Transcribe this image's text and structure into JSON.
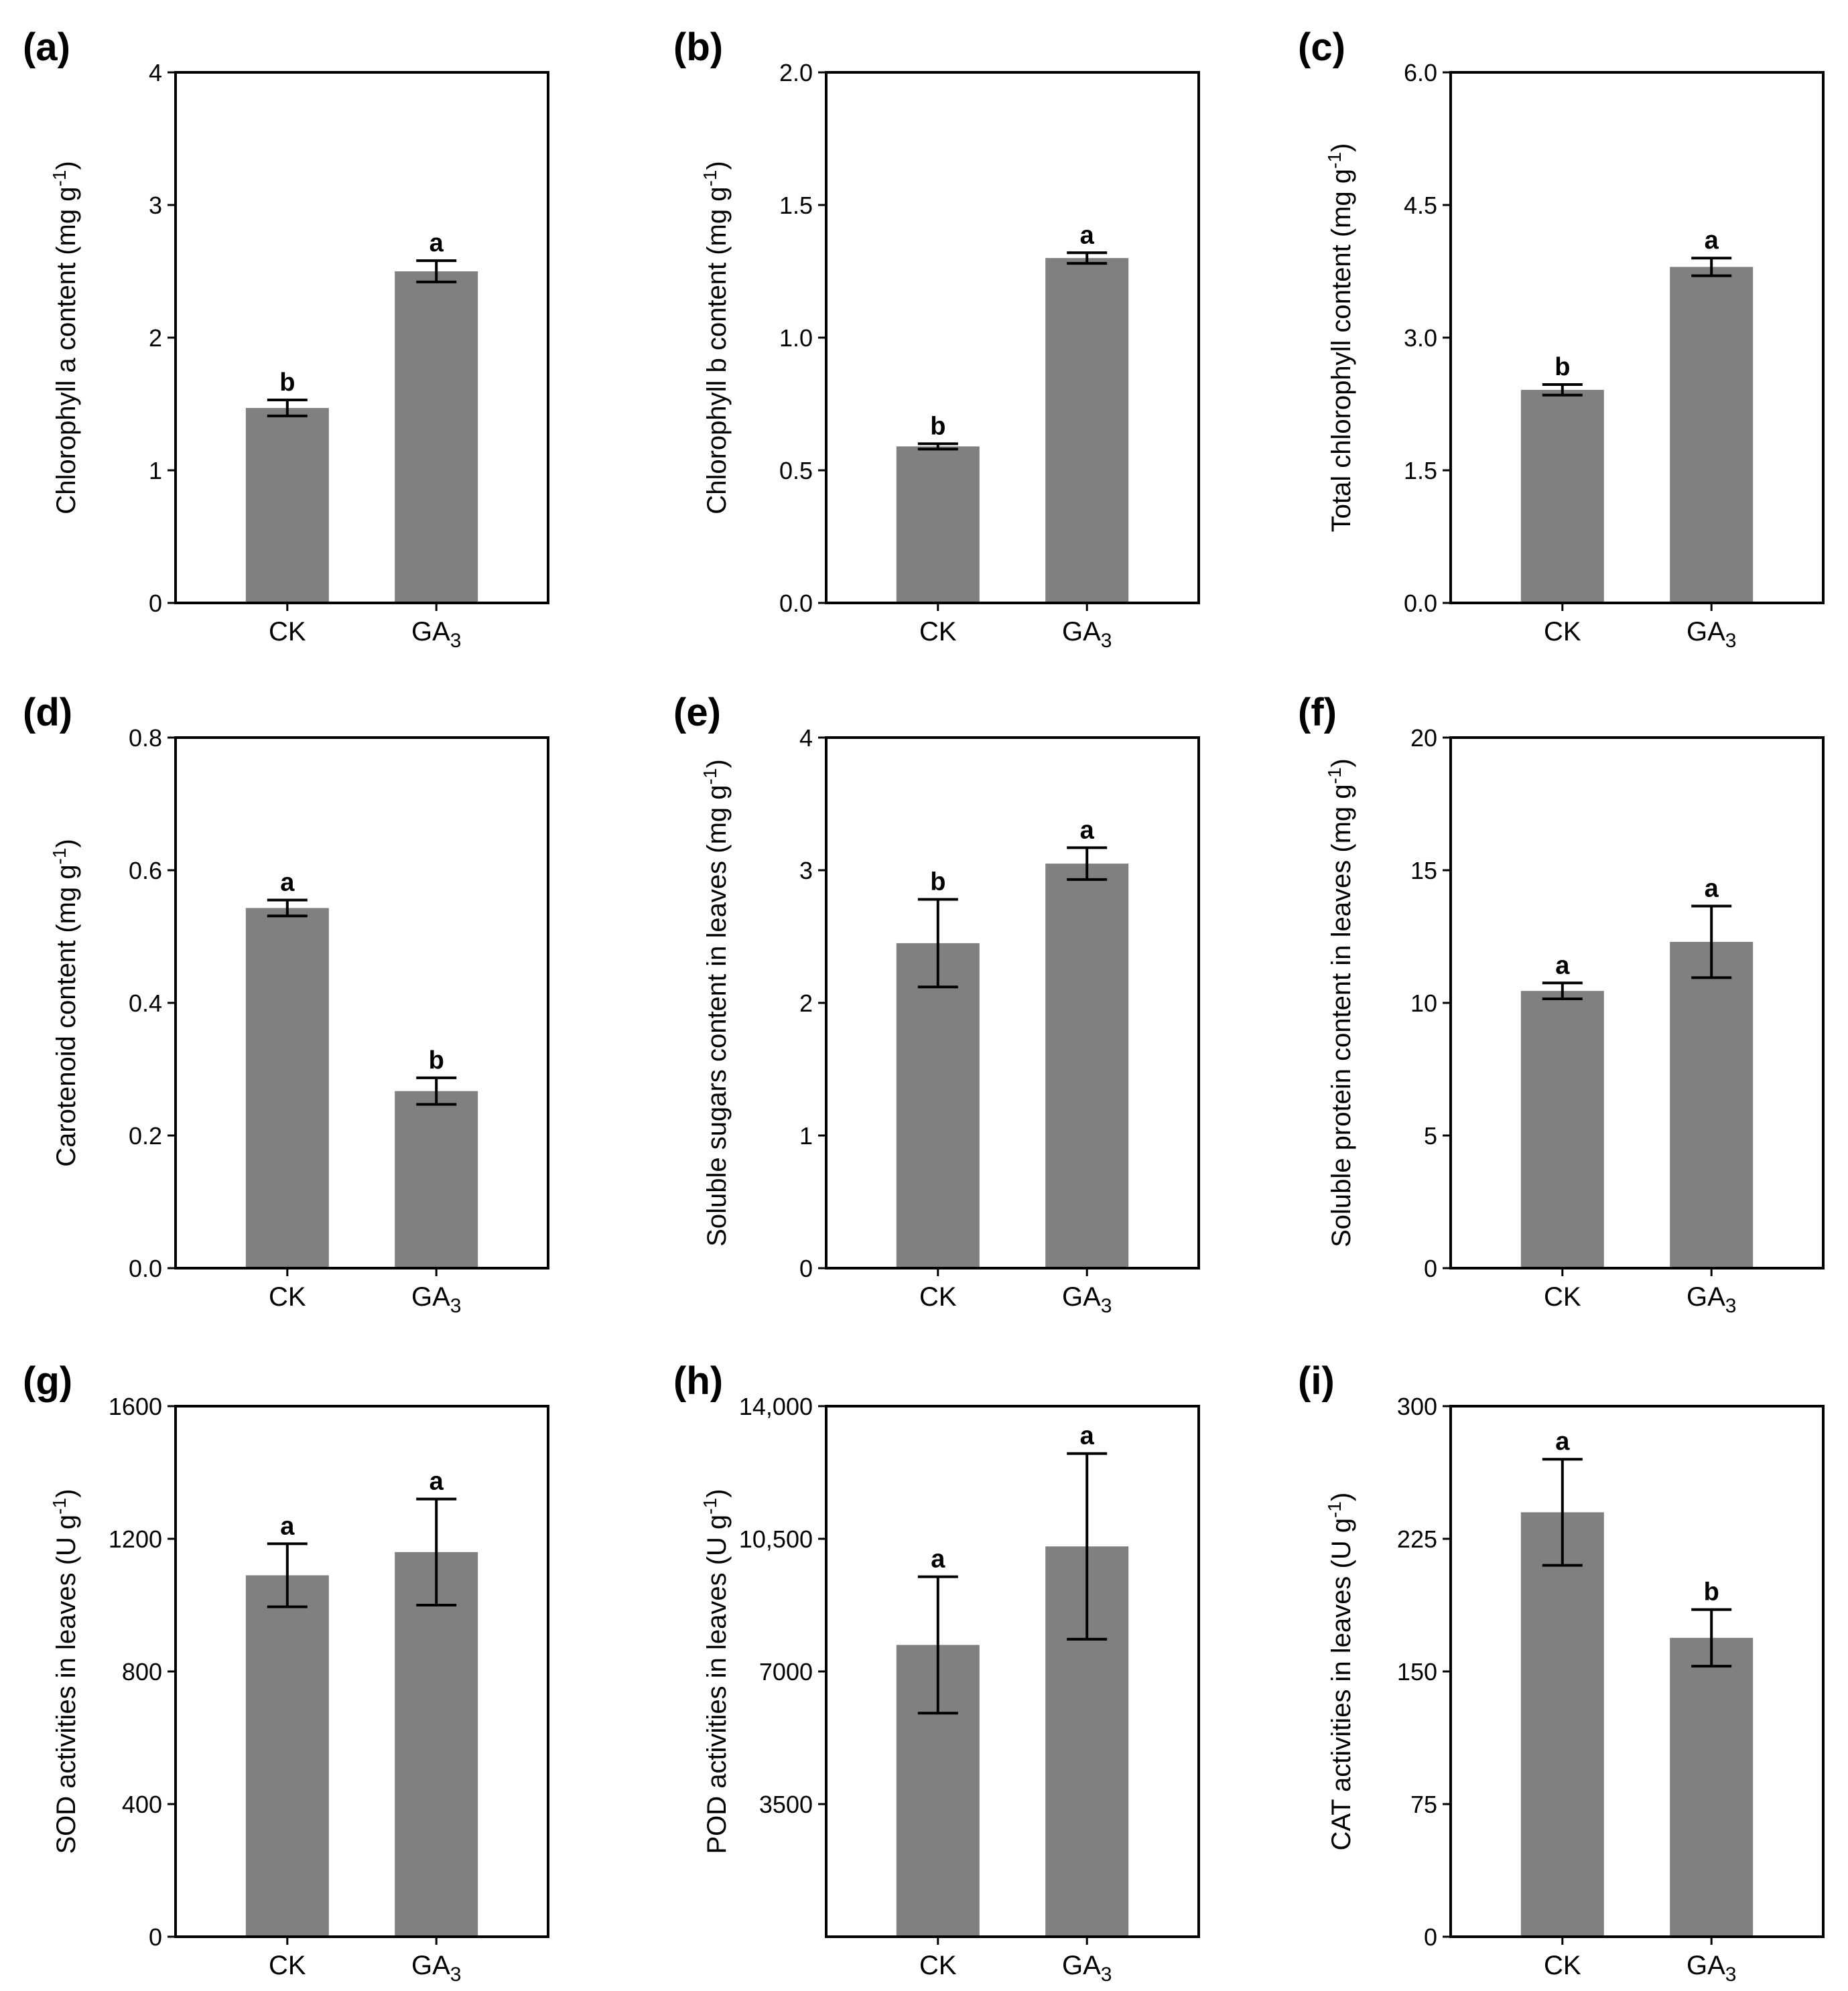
{
  "chart_data": [
    {
      "panel": "(a)",
      "type": "bar",
      "categories": [
        "CK",
        "GA3"
      ],
      "values": [
        1.47,
        2.5
      ],
      "errors": [
        0.06,
        0.08
      ],
      "significance": [
        "b",
        "a"
      ],
      "ylabel": "Chlorophyll a content (mg g-1)",
      "ylim": [
        0,
        4
      ],
      "yticks": [
        0,
        1,
        2,
        3,
        4
      ],
      "ytick_labels": [
        "0",
        "1",
        "2",
        "3",
        "4"
      ],
      "bar_color": "#808080"
    },
    {
      "panel": "(b)",
      "type": "bar",
      "categories": [
        "CK",
        "GA3"
      ],
      "values": [
        0.59,
        1.3
      ],
      "errors": [
        0.01,
        0.02
      ],
      "significance": [
        "b",
        "a"
      ],
      "ylabel": "Chlorophyll b content (mg g-1)",
      "ylim": [
        0,
        2
      ],
      "yticks": [
        0,
        0.5,
        1,
        1.5,
        2
      ],
      "ytick_labels": [
        "0.0",
        "0.5",
        "1.0",
        "1.5",
        "2.0"
      ],
      "bar_color": "#808080"
    },
    {
      "panel": "(c)",
      "type": "bar",
      "categories": [
        "CK",
        "GA3"
      ],
      "values": [
        2.41,
        3.8
      ],
      "errors": [
        0.06,
        0.1
      ],
      "significance": [
        "b",
        "a"
      ],
      "ylabel": "Total chlorophyll content (mg g-1)",
      "ylim": [
        0,
        6
      ],
      "yticks": [
        0,
        1.5,
        3,
        4.5,
        6
      ],
      "ytick_labels": [
        "0.0",
        "1.5",
        "3.0",
        "4.5",
        "6.0"
      ],
      "bar_color": "#808080"
    },
    {
      "panel": "(d)",
      "type": "bar",
      "categories": [
        "CK",
        "GA3"
      ],
      "values": [
        0.543,
        0.267
      ],
      "errors": [
        0.012,
        0.02
      ],
      "significance": [
        "a",
        "b"
      ],
      "ylabel": "Carotenoid content (mg g-1)",
      "ylim": [
        0,
        0.8
      ],
      "yticks": [
        0,
        0.2,
        0.4,
        0.6,
        0.8
      ],
      "ytick_labels": [
        "0.0",
        "0.2",
        "0.4",
        "0.6",
        "0.8"
      ],
      "bar_color": "#808080"
    },
    {
      "panel": "(e)",
      "type": "bar",
      "categories": [
        "CK",
        "GA3"
      ],
      "values": [
        2.45,
        3.05
      ],
      "errors": [
        0.33,
        0.12
      ],
      "significance": [
        "b",
        "a"
      ],
      "ylabel": "Soluble sugars content in leaves (mg g-1)",
      "ylim": [
        0,
        4
      ],
      "yticks": [
        0,
        1,
        2,
        3,
        4
      ],
      "ytick_labels": [
        "0",
        "1",
        "2",
        "3",
        "4"
      ],
      "bar_color": "#808080"
    },
    {
      "panel": "(f)",
      "type": "bar",
      "categories": [
        "CK",
        "GA3"
      ],
      "values": [
        10.45,
        12.3
      ],
      "errors": [
        0.3,
        1.35
      ],
      "significance": [
        "a",
        "a"
      ],
      "ylabel": "Soluble protein content in leaves (mg g-1)",
      "ylim": [
        0,
        20
      ],
      "yticks": [
        0,
        5,
        10,
        15,
        20
      ],
      "ytick_labels": [
        "0",
        "5",
        "10",
        "15",
        "20"
      ],
      "bar_color": "#808080"
    },
    {
      "panel": "(g)",
      "type": "bar",
      "categories": [
        "CK",
        "GA3"
      ],
      "values": [
        1090,
        1160
      ],
      "errors": [
        95,
        160
      ],
      "significance": [
        "a",
        "a"
      ],
      "ylabel": "SOD activities in leaves (U g-1)",
      "ylim": [
        0,
        1600
      ],
      "yticks": [
        0,
        400,
        800,
        1200,
        1600
      ],
      "ytick_labels": [
        "0",
        "400",
        "800",
        "1200",
        "1600"
      ],
      "bar_color": "#808080"
    },
    {
      "panel": "(h)",
      "type": "bar",
      "categories": [
        "CK",
        "GA3"
      ],
      "values": [
        7700,
        10300
      ],
      "errors": [
        1800,
        2450
      ],
      "significance": [
        "a",
        "a"
      ],
      "ylabel": "POD activities in leaves (U g-1)",
      "ylim": [
        0,
        14000
      ],
      "yticks": [
        3500,
        7000,
        10500,
        14000
      ],
      "ytick_labels": [
        "3500",
        "7000",
        "10,500",
        "14,000"
      ],
      "bar_color": "#808080"
    },
    {
      "panel": "(i)",
      "type": "bar",
      "categories": [
        "CK",
        "GA3"
      ],
      "values": [
        240,
        169
      ],
      "errors": [
        30,
        16
      ],
      "significance": [
        "a",
        "b"
      ],
      "ylabel": "CAT activities in leaves (U g-1)",
      "ylim": [
        0,
        300
      ],
      "yticks": [
        0,
        75,
        150,
        225,
        300
      ],
      "ytick_labels": [
        "0",
        "75",
        "150",
        "225",
        "300"
      ],
      "bar_color": "#808080"
    }
  ]
}
